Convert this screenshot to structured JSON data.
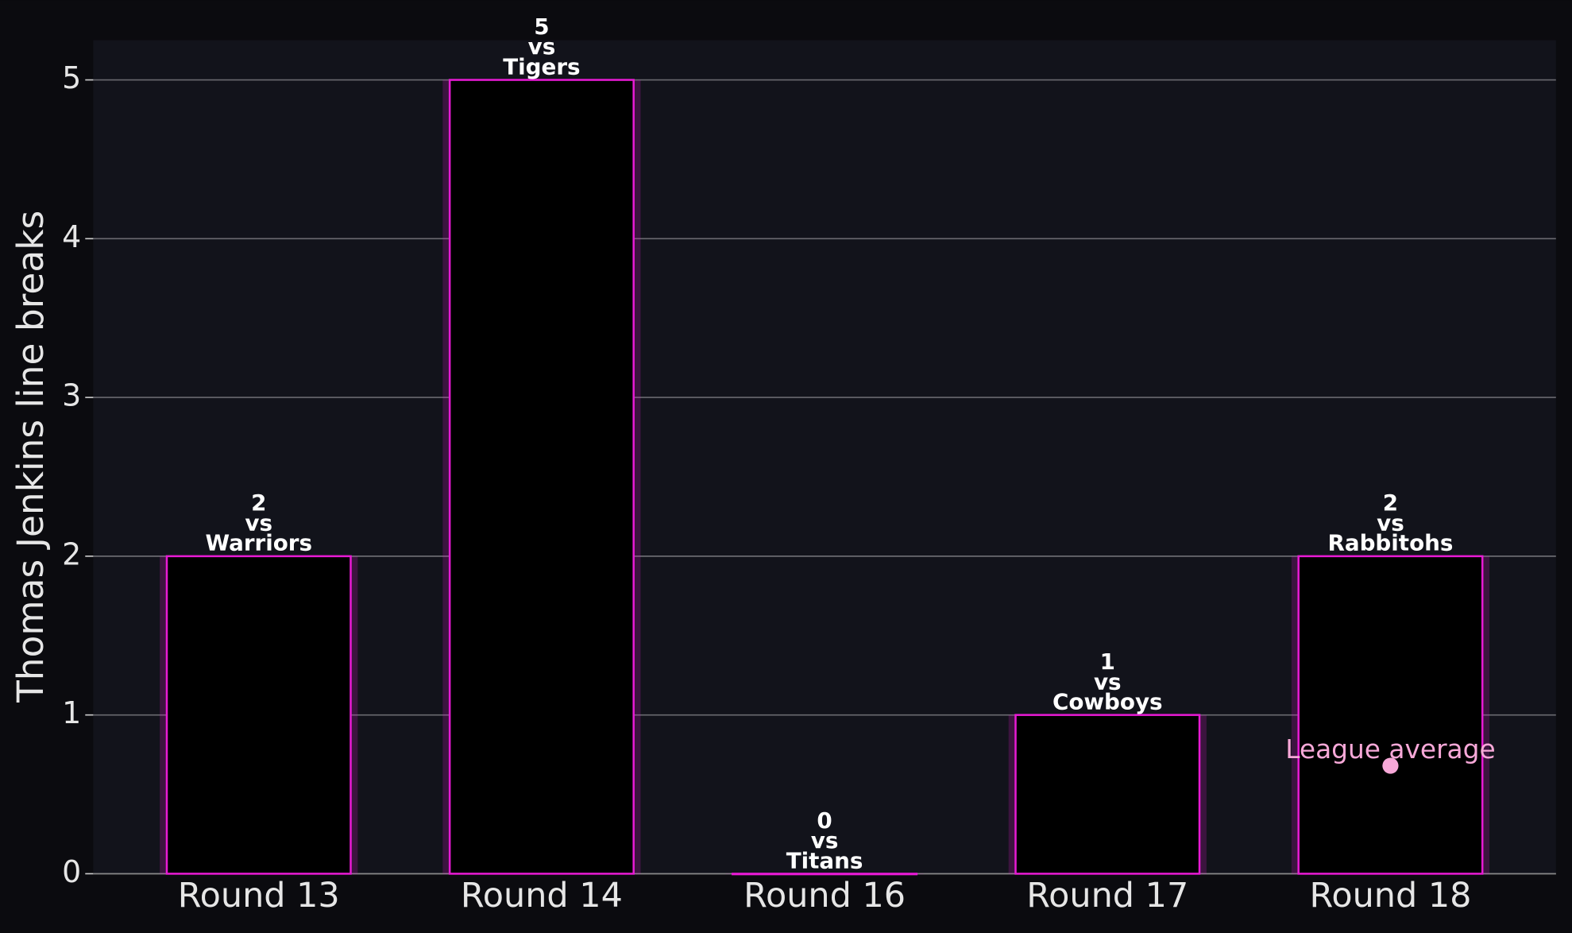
{
  "chart_data": {
    "type": "bar",
    "y_label": "Thomas Jenkins line breaks",
    "categories": [
      "Round 13",
      "Round 14",
      "Round 16",
      "Round 17",
      "Round 18"
    ],
    "values": [
      2,
      5,
      0,
      1,
      2
    ],
    "opponents": [
      "Warriors",
      "Tigers",
      "Titans",
      "Cowboys",
      "Rabbitohs"
    ],
    "opponent_prefix": "vs",
    "color": "#000000",
    "edge_color": "#e81ad4",
    "ylim": [
      0,
      5.25
    ],
    "yticks": [
      0,
      1,
      2,
      3,
      4,
      5
    ],
    "grid": true,
    "league_average": {
      "label": "League average",
      "category": "Round 18",
      "value": 0.68,
      "color": "#f7a8d8"
    }
  }
}
